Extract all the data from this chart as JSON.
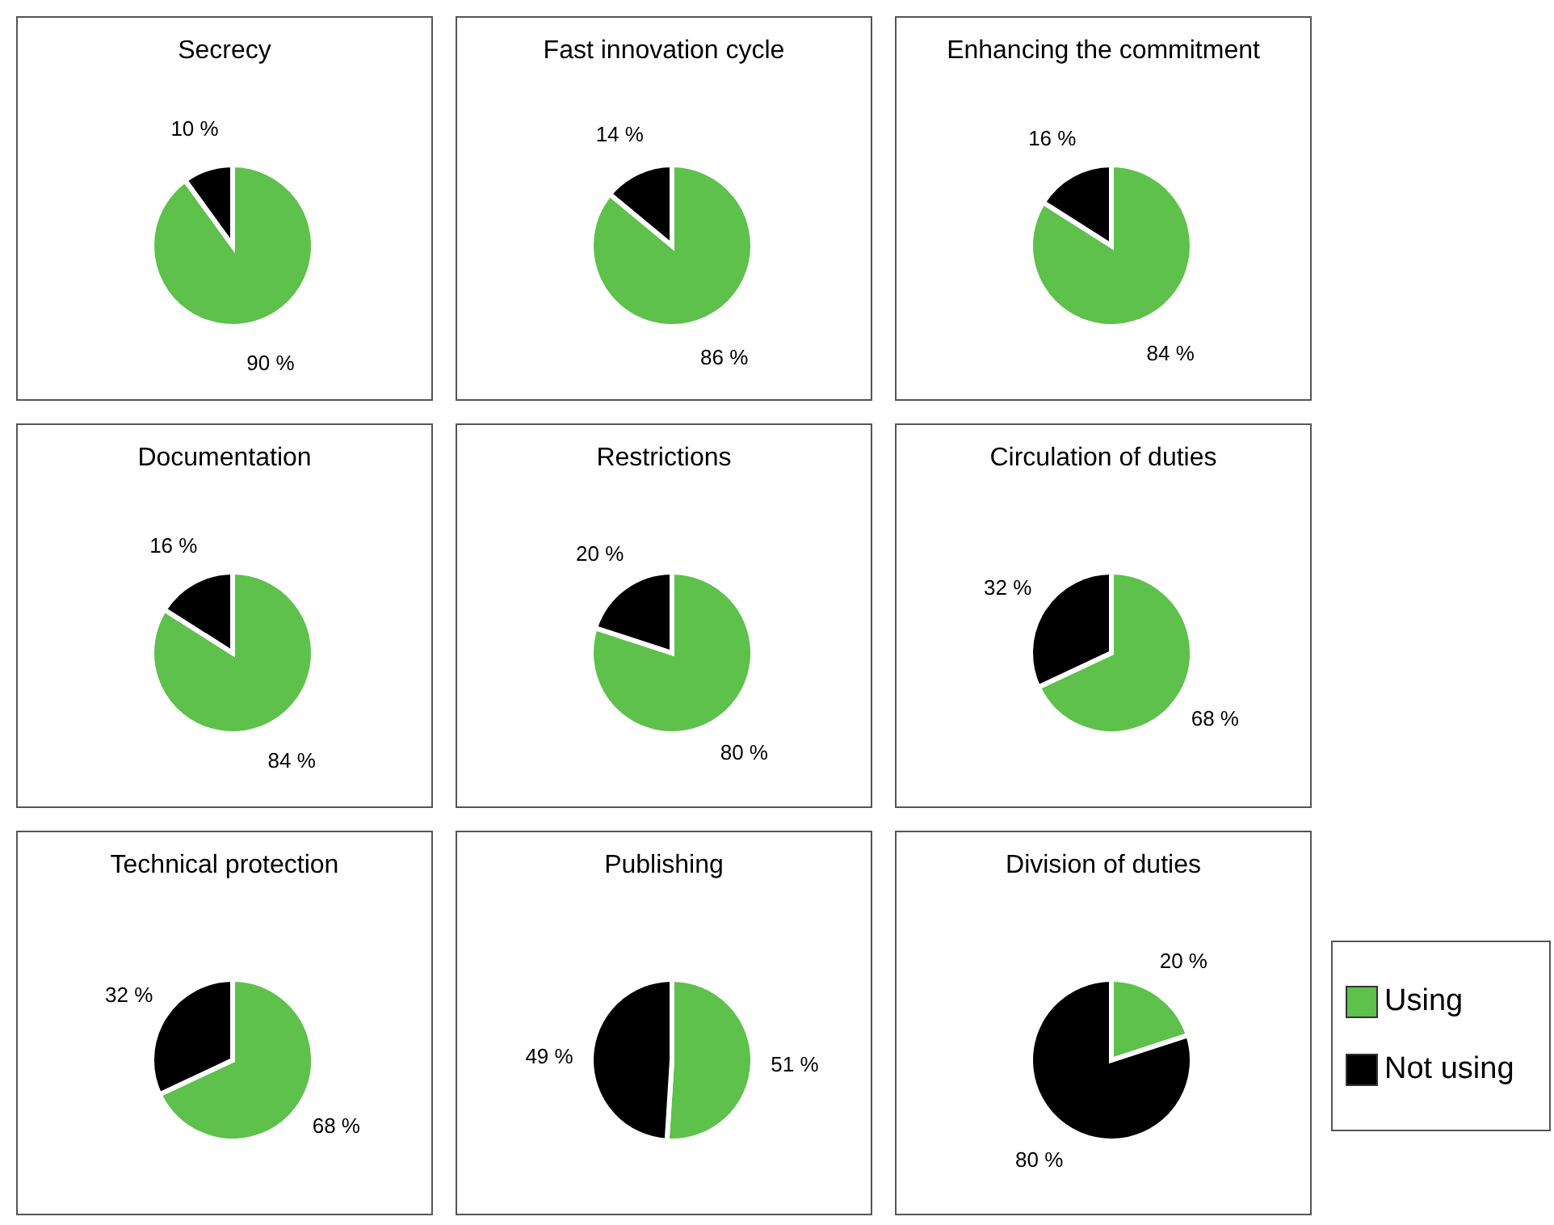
{
  "chart_data": [
    {
      "type": "pie",
      "title": "Secrecy",
      "categories": [
        null,
        null
      ],
      "values": [
        90,
        10
      ],
      "value_labels": [
        "90 %",
        "10 %"
      ],
      "colors": [
        "#5dc14b",
        "#000000"
      ]
    },
    {
      "type": "pie",
      "title": "Fast innovation cycle",
      "categories": [
        null,
        null
      ],
      "values": [
        86,
        14
      ],
      "value_labels": [
        "86 %",
        "14 %"
      ],
      "colors": [
        "#5dc14b",
        "#000000"
      ]
    },
    {
      "type": "pie",
      "title": "Enhancing the commitment",
      "categories": [
        null,
        null
      ],
      "values": [
        84,
        16
      ],
      "value_labels": [
        "84 %",
        "16 %"
      ],
      "colors": [
        "#5dc14b",
        "#000000"
      ]
    },
    {
      "type": "pie",
      "title": "Documentation",
      "categories": [
        null,
        null
      ],
      "values": [
        84,
        16
      ],
      "value_labels": [
        "84 %",
        "16 %"
      ],
      "colors": [
        "#5dc14b",
        "#000000"
      ]
    },
    {
      "type": "pie",
      "title": "Restrictions",
      "categories": [
        null,
        null
      ],
      "values": [
        80,
        20
      ],
      "value_labels": [
        "80 %",
        "20 %"
      ],
      "colors": [
        "#5dc14b",
        "#000000"
      ]
    },
    {
      "type": "pie",
      "title": "Circulation of duties",
      "categories": [
        null,
        null
      ],
      "values": [
        68,
        32
      ],
      "value_labels": [
        "68 %",
        "32 %"
      ],
      "colors": [
        "#5dc14b",
        "#000000"
      ]
    },
    {
      "type": "pie",
      "title": "Technical protection",
      "categories": [
        null,
        null
      ],
      "values": [
        68,
        32
      ],
      "value_labels": [
        "68 %",
        "32 %"
      ],
      "colors": [
        "#5dc14b",
        "#000000"
      ]
    },
    {
      "type": "pie",
      "title": "Publishing",
      "categories": [
        null,
        null
      ],
      "values": [
        51,
        49
      ],
      "value_labels": [
        "51 %",
        "49 %"
      ],
      "colors": [
        "#5dc14b",
        "#000000"
      ]
    },
    {
      "type": "pie",
      "title": "Division of duties",
      "categories": [
        "Using",
        "Not using"
      ],
      "values": [
        20,
        80
      ],
      "value_labels": [
        "20 %",
        "80 %"
      ],
      "colors": [
        "#5dc14b",
        "#000000"
      ],
      "legend": "right"
    }
  ]
}
